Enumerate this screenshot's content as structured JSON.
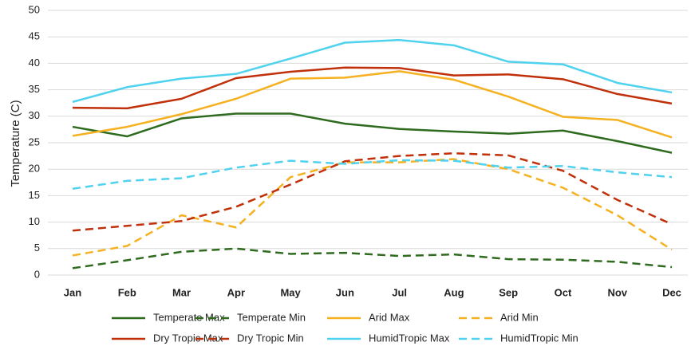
{
  "chart_data": {
    "type": "line",
    "y_label": "Temperature (C)",
    "categories": [
      "Jan",
      "Feb",
      "Mar",
      "Apr",
      "May",
      "Jun",
      "Jul",
      "Aug",
      "Sep",
      "Oct",
      "Nov",
      "Dec"
    ],
    "ylim": [
      0,
      50
    ],
    "yticks": [
      0,
      5,
      10,
      15,
      20,
      25,
      30,
      35,
      40,
      45,
      50
    ],
    "grid": true,
    "legend": "bottom",
    "series": [
      {
        "name": "Temperate Max",
        "color": "#2e6b1e",
        "dashed": false,
        "values": [
          28,
          26.2,
          29.6,
          30.5,
          30.5,
          28.6,
          27.6,
          27.1,
          26.7,
          27.3,
          25.3,
          23.1
        ]
      },
      {
        "name": "Temperate Min",
        "color": "#2e6b1e",
        "dashed": true,
        "values": [
          1.3,
          2.8,
          4.4,
          5,
          4,
          4.2,
          3.6,
          3.9,
          3,
          2.9,
          2.5,
          1.5
        ]
      },
      {
        "name": "Arid Max",
        "color": "#f5b120",
        "dashed": false,
        "values": [
          26.3,
          28,
          30.4,
          33.3,
          37.1,
          37.3,
          38.5,
          36.9,
          33.7,
          29.9,
          29.3,
          26
        ]
      },
      {
        "name": "Arid Min",
        "color": "#f5b120",
        "dashed": true,
        "values": [
          3.7,
          5.5,
          11.3,
          9,
          18.5,
          21.3,
          21.3,
          21.9,
          20,
          16.5,
          11.3,
          4.8
        ]
      },
      {
        "name": "Dry Tropic Max",
        "color": "#c0300a",
        "dashed": false,
        "values": [
          31.6,
          31.5,
          33.3,
          37.2,
          38.4,
          39.2,
          39.1,
          37.7,
          37.9,
          37,
          34.2,
          32.4
        ]
      },
      {
        "name": "Dry Tropic Min",
        "color": "#c0300a",
        "dashed": true,
        "values": [
          8.4,
          9.3,
          10.2,
          12.9,
          17.1,
          21.5,
          22.5,
          23,
          22.6,
          19.7,
          14.2,
          9.6
        ]
      },
      {
        "name": "HumidTropic Max",
        "color": "#4fd2ee",
        "dashed": false,
        "values": [
          32.7,
          35.5,
          37.1,
          38,
          40.9,
          43.9,
          44.4,
          43.4,
          40.3,
          39.8,
          36.3,
          34.5
        ]
      },
      {
        "name": "HumidTropic Min",
        "color": "#4fd2ee",
        "dashed": true,
        "values": [
          16.3,
          17.8,
          18.3,
          20.3,
          21.6,
          21,
          21.7,
          21.6,
          20.3,
          20.6,
          19.4,
          18.5
        ]
      }
    ]
  }
}
